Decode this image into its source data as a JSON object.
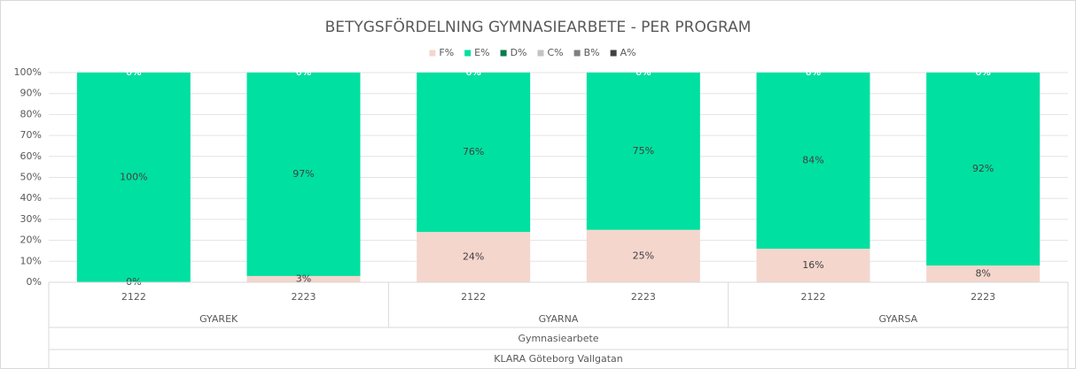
{
  "chart_data": {
    "type": "stacked_bar",
    "title": "BETYGSFÖRDELNING GYMNASIEARBETE - PER PROGRAM",
    "categories": [
      "2122",
      "2223",
      "2122",
      "2223",
      "2122",
      "2223"
    ],
    "category_groups": [
      "GYAREK",
      "GYARNA",
      "GYARSA"
    ],
    "category_levels": [
      "Gymnasiearbete",
      "KLARA Göteborg Vallgatan"
    ],
    "series": [
      {
        "name": "F%",
        "color": "#f4d6cd",
        "values": [
          0,
          3,
          24,
          25,
          16,
          8
        ],
        "value_labels": [
          "0%",
          "3%",
          "24%",
          "25%",
          "16%",
          "8%"
        ]
      },
      {
        "name": "E%",
        "color": "#00e0a0",
        "values": [
          100,
          97,
          76,
          75,
          84,
          92
        ],
        "value_labels": [
          "100%",
          "97%",
          "76%",
          "75%",
          "84%",
          "92%"
        ]
      },
      {
        "name": "D%",
        "color": "#0b7a4b",
        "values": [
          0,
          0,
          0,
          0,
          0,
          0
        ],
        "value_labels": [
          "0%",
          "0%",
          "0%",
          "0%",
          "0%",
          "0%"
        ]
      },
      {
        "name": "C%",
        "color": "#c3c3c3",
        "values": [
          0,
          0,
          0,
          0,
          0,
          0
        ],
        "value_labels": [
          "0%",
          "0%",
          "0%",
          "0%",
          "0%",
          "0%"
        ]
      },
      {
        "name": "B%",
        "color": "#7f7f7f",
        "values": [
          0,
          0,
          0,
          0,
          0,
          0
        ],
        "value_labels": [
          "0%",
          "0%",
          "0%",
          "0%",
          "0%",
          "0%"
        ]
      },
      {
        "name": "A%",
        "color": "#404040",
        "values": [
          0,
          0,
          0,
          0,
          0,
          0
        ],
        "value_labels": [
          "0%",
          "0%",
          "0%",
          "0%",
          "0%",
          "0%"
        ]
      }
    ],
    "ylim": [
      0,
      100
    ],
    "yticks": [
      {
        "value": 0,
        "label": "0%"
      },
      {
        "value": 10,
        "label": "10%"
      },
      {
        "value": 20,
        "label": "20%"
      },
      {
        "value": 30,
        "label": "30%"
      },
      {
        "value": 40,
        "label": "40%"
      },
      {
        "value": 50,
        "label": "50%"
      },
      {
        "value": 60,
        "label": "60%"
      },
      {
        "value": 70,
        "label": "70%"
      },
      {
        "value": 80,
        "label": "80%"
      },
      {
        "value": 90,
        "label": "90%"
      },
      {
        "value": 100,
        "label": "100%"
      }
    ],
    "grid": true,
    "legend": "top"
  }
}
